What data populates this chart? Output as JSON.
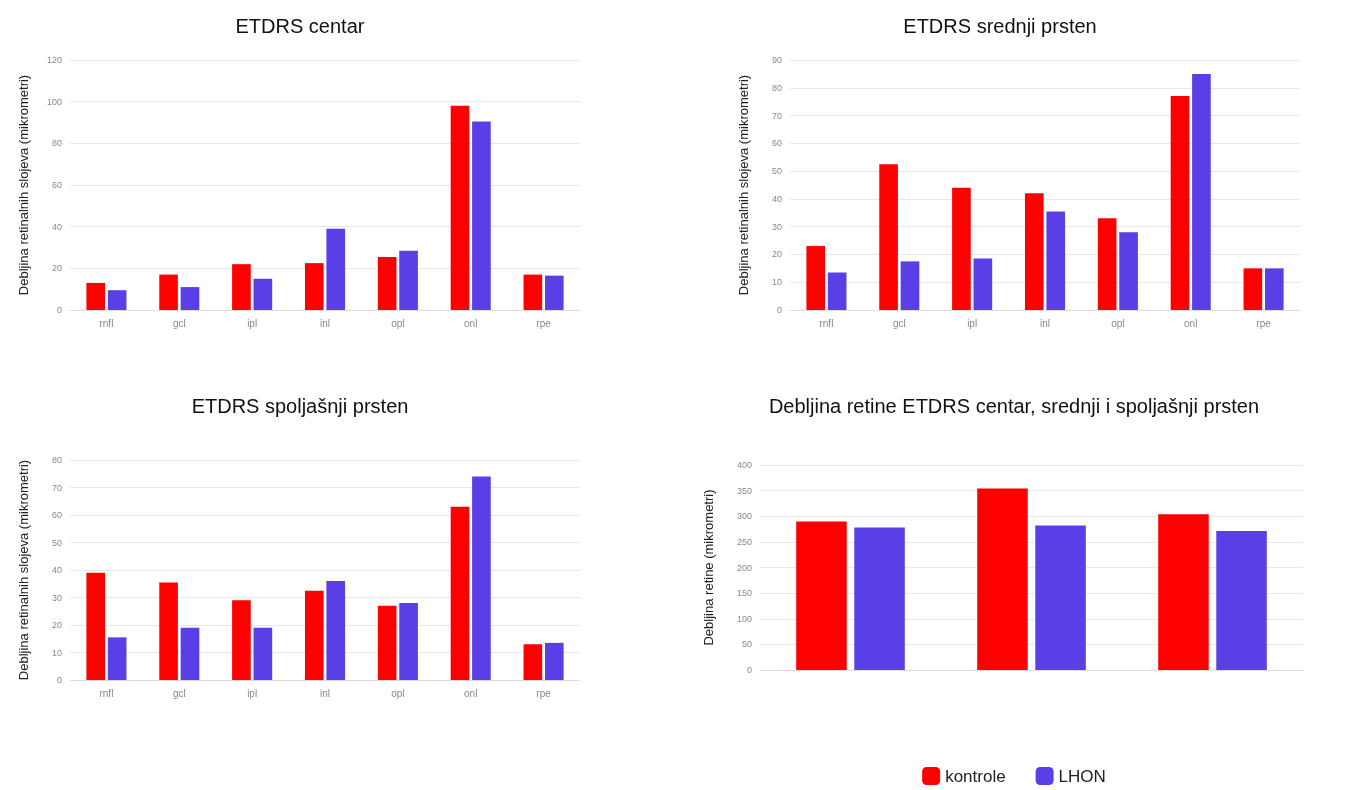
{
  "chart_data": [
    {
      "type": "bar",
      "title": "ETDRS centar",
      "ylabel": "Debljina retinalnih slojeva (mikrometri)",
      "categories": [
        "rnfl",
        "gcl",
        "ipl",
        "inl",
        "opl",
        "onl",
        "rpe"
      ],
      "series": [
        {
          "color": "#ff0000",
          "values": [
            13,
            17,
            22,
            22.5,
            25.5,
            98,
            17
          ]
        },
        {
          "color": "#5a3ee6",
          "values": [
            9.5,
            11,
            15,
            39,
            28.5,
            90.5,
            16.5
          ]
        }
      ],
      "ylim": [
        0,
        120
      ],
      "yticks": [
        0,
        20,
        40,
        60,
        80,
        100,
        120
      ],
      "grid": "y",
      "legend": false
    },
    {
      "type": "bar",
      "title": "ETDRS srednji prsten",
      "ylabel": "Debljina retinalnih slojeva (mikrometri)",
      "categories": [
        "rnfl",
        "gcl",
        "ipl",
        "inl",
        "opl",
        "onl",
        "rpe"
      ],
      "series": [
        {
          "color": "#ff0000",
          "values": [
            23,
            52.5,
            44,
            42,
            33,
            77,
            15
          ]
        },
        {
          "color": "#5a3ee6",
          "values": [
            13.5,
            17.5,
            18.5,
            35.5,
            28,
            85,
            15
          ]
        }
      ],
      "ylim": [
        0,
        90
      ],
      "yticks": [
        0,
        10,
        20,
        30,
        40,
        50,
        60,
        70,
        80,
        90
      ],
      "grid": "y",
      "legend": false
    },
    {
      "type": "bar",
      "title": "ETDRS spoljašnji prsten",
      "ylabel": "Debljina retinalnih slojeva (mikrometri)",
      "categories": [
        "rnfl",
        "gcl",
        "ipl",
        "inl",
        "opl",
        "onl",
        "rpe"
      ],
      "series": [
        {
          "color": "#ff0000",
          "values": [
            39,
            35.5,
            29,
            32.5,
            27,
            63,
            13
          ]
        },
        {
          "color": "#5a3ee6",
          "values": [
            15.5,
            19,
            19,
            36,
            28,
            74,
            13.5
          ]
        }
      ],
      "ylim": [
        0,
        80
      ],
      "yticks": [
        0,
        10,
        20,
        30,
        40,
        50,
        60,
        70,
        80
      ],
      "grid": "y",
      "legend": false
    },
    {
      "type": "bar",
      "title": "Debljina retine ETDRS centar, srednji i spoljašnji prsten",
      "ylabel": "Debljina retine (mikrometri)",
      "categories": [
        null,
        null,
        null
      ],
      "series": [
        {
          "name": "kontrole",
          "color": "#ff0000",
          "values": [
            290,
            354,
            304
          ]
        },
        {
          "name": "LHON",
          "color": "#5a3ee6",
          "values": [
            278,
            282,
            271
          ]
        }
      ],
      "ylim": [
        0,
        400
      ],
      "yticks": [
        0,
        50,
        100,
        150,
        200,
        250,
        300,
        350,
        400
      ],
      "grid": "y",
      "legend": "bottom"
    }
  ]
}
